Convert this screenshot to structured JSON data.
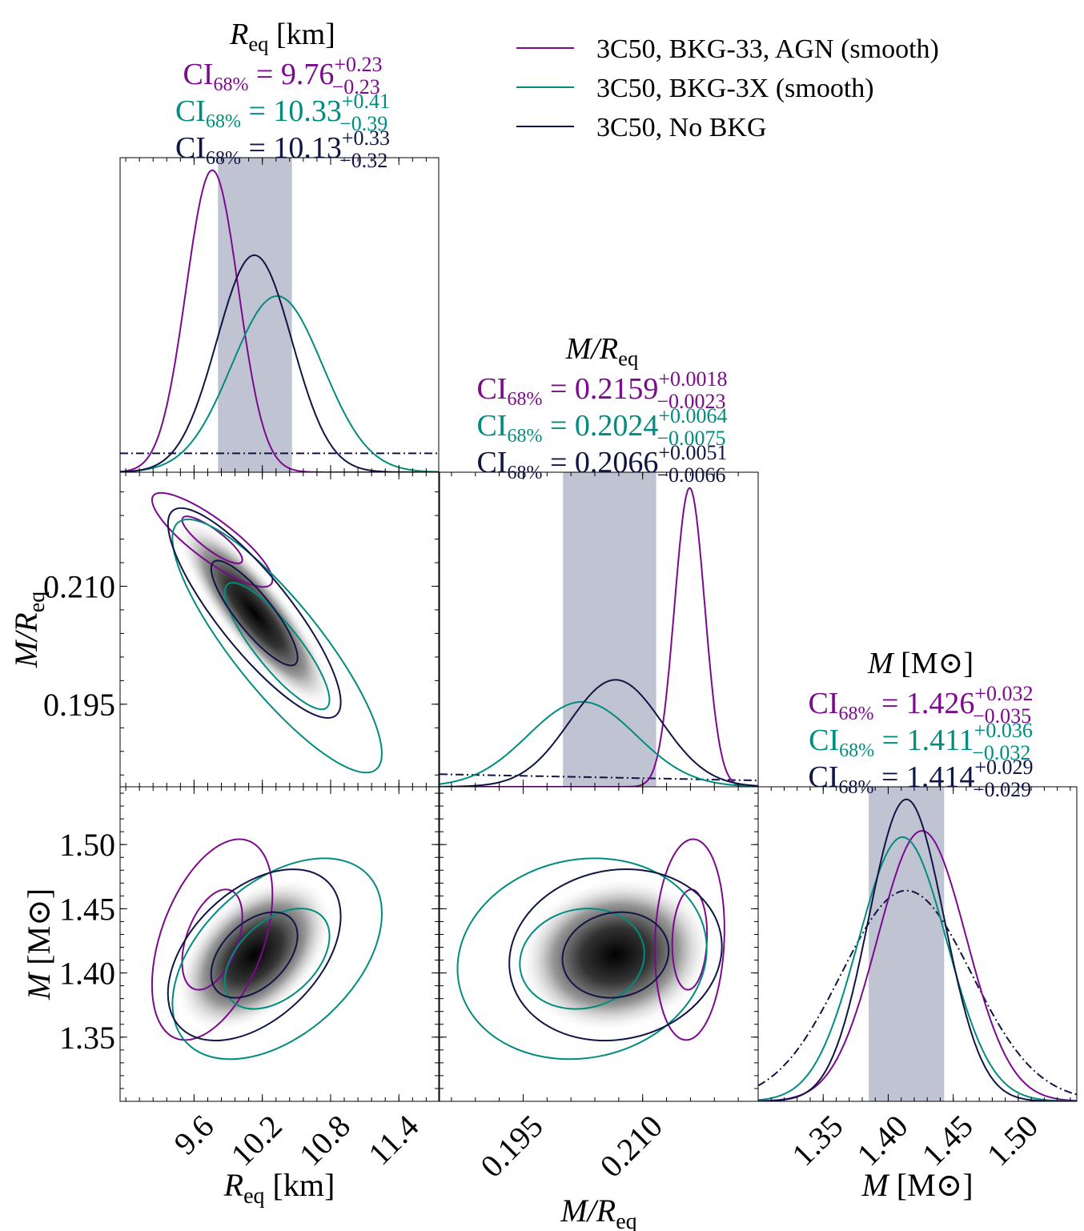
{
  "legend": {
    "entries": [
      {
        "label": "3C50, BKG-33, AGN (smooth)",
        "color": "#7b0a8c"
      },
      {
        "label": "3C50, BKG-3X (smooth)",
        "color": "#008c7e"
      },
      {
        "label": "3C50, No BKG",
        "color": "#101545"
      }
    ]
  },
  "colors": {
    "purple": "#7b0a8c",
    "teal": "#008c7e",
    "navy": "#101545",
    "band": "#c0c3d1"
  },
  "chart_data": {
    "type": "corner",
    "parameters": [
      {
        "key": "R",
        "label_main": "R",
        "label_sub": "eq",
        "label_unit": " [km]",
        "range": [
          8.95,
          11.75
        ],
        "ticks": [
          9.6,
          10.2,
          10.8,
          11.4
        ],
        "tick_labels": [
          "9.6",
          "10.2",
          "10.8",
          "11.4"
        ]
      },
      {
        "key": "C",
        "label_main": "M/R",
        "label_sub": "eq",
        "label_unit": "",
        "range": [
          0.1845,
          0.2245
        ],
        "ticks": [
          0.195,
          0.21
        ],
        "tick_labels": [
          "0.195",
          "0.210"
        ]
      },
      {
        "key": "M",
        "label_main": "M",
        "label_sub": "",
        "label_unit": " [M⊙]",
        "range": [
          1.3,
          1.545
        ],
        "ticks": [
          1.35,
          1.4,
          1.45,
          1.5
        ],
        "tick_labels": [
          "1.35",
          "1.40",
          "1.45",
          "1.50"
        ]
      }
    ],
    "credible_intervals": {
      "prefix": "CI",
      "sub": "68%",
      "R": [
        {
          "series": "3C50, BKG-33, AGN (smooth)",
          "value": "9.76",
          "plus": "+0.23",
          "minus": "−0.23"
        },
        {
          "series": "3C50, BKG-3X (smooth)",
          "value": "10.33",
          "plus": "+0.41",
          "minus": "−0.39"
        },
        {
          "series": "3C50, No BKG",
          "value": "10.13",
          "plus": "+0.33",
          "minus": "−0.32"
        }
      ],
      "C": [
        {
          "series": "3C50, BKG-33, AGN (smooth)",
          "value": "0.2159",
          "plus": "+0.0018",
          "minus": "−0.0023"
        },
        {
          "series": "3C50, BKG-3X (smooth)",
          "value": "0.2024",
          "plus": "+0.0064",
          "minus": "−0.0075"
        },
        {
          "series": "3C50, No BKG",
          "value": "0.2066",
          "plus": "+0.0051",
          "minus": "−0.0066"
        }
      ],
      "M": [
        {
          "series": "3C50, BKG-33, AGN (smooth)",
          "value": "1.426",
          "plus": "+0.032",
          "minus": "−0.035"
        },
        {
          "series": "3C50, BKG-3X (smooth)",
          "value": "1.411",
          "plus": "+0.036",
          "minus": "−0.032"
        },
        {
          "series": "3C50, No BKG",
          "value": "1.414",
          "plus": "+0.029",
          "minus": "−0.029"
        }
      ]
    },
    "shaded_68_band": {
      "R": [
        9.81,
        10.46
      ],
      "C": [
        0.2,
        0.2117
      ],
      "M": [
        1.385,
        1.443
      ]
    },
    "marginals_1d": {
      "R": [
        {
          "series": "purple",
          "mean": 9.76,
          "sigma": 0.23,
          "peak": 0.96
        },
        {
          "series": "teal",
          "mean": 10.33,
          "sigma": 0.4,
          "peak": 0.56
        },
        {
          "series": "navy",
          "mean": 10.13,
          "sigma": 0.33,
          "peak": 0.69
        }
      ],
      "C": [
        {
          "series": "purple",
          "mean": 0.2159,
          "sigma": 0.0019,
          "peak": 0.95
        },
        {
          "series": "teal",
          "mean": 0.2024,
          "sigma": 0.0068,
          "peak": 0.27
        },
        {
          "series": "navy",
          "mean": 0.2066,
          "sigma": 0.0058,
          "peak": 0.34
        }
      ],
      "M": [
        {
          "series": "purple",
          "mean": 1.426,
          "sigma": 0.034,
          "peak": 0.86
        },
        {
          "series": "teal",
          "mean": 1.411,
          "sigma": 0.034,
          "peak": 0.84
        },
        {
          "series": "navy",
          "mean": 1.414,
          "sigma": 0.029,
          "peak": 0.96
        }
      ]
    },
    "priors_dashdot": {
      "R": {
        "type": "flat",
        "level": 0.06
      },
      "C": {
        "type": "linear",
        "left": 0.04,
        "right": 0.02
      },
      "M": {
        "type": "gauss",
        "mean": 1.414,
        "sigma": 0.05,
        "peak": 0.67
      }
    },
    "contours_2d": {
      "C_vs_R": {
        "rho": -0.85,
        "series": [
          {
            "series": "purple",
            "mx": 9.76,
            "my": 0.2159,
            "sx": 0.23,
            "sy": 0.0026
          },
          {
            "series": "teal",
            "mx": 10.33,
            "my": 0.2024,
            "sx": 0.4,
            "sy": 0.007
          },
          {
            "series": "navy",
            "mx": 10.13,
            "my": 0.2066,
            "sx": 0.33,
            "sy": 0.0058
          }
        ],
        "density": {
          "mx": 10.13,
          "my": 0.2066,
          "sx": 0.33,
          "sy": 0.0058
        }
      },
      "M_vs_R": {
        "rho": 0.45,
        "series": [
          {
            "series": "purple",
            "mx": 9.76,
            "my": 1.426,
            "sx": 0.23,
            "sy": 0.034
          },
          {
            "series": "teal",
            "mx": 10.33,
            "my": 1.411,
            "sx": 0.4,
            "sy": 0.034
          },
          {
            "series": "navy",
            "mx": 10.13,
            "my": 1.414,
            "sx": 0.33,
            "sy": 0.029
          }
        ],
        "density": {
          "mx": 10.13,
          "my": 1.414,
          "sx": 0.33,
          "sy": 0.029
        }
      },
      "M_vs_C": {
        "rho": 0.1,
        "series": [
          {
            "series": "purple",
            "mx": 0.2159,
            "my": 1.426,
            "sx": 0.0019,
            "sy": 0.034
          },
          {
            "series": "teal",
            "mx": 0.2024,
            "my": 1.411,
            "sx": 0.0068,
            "sy": 0.034
          },
          {
            "series": "navy",
            "mx": 0.2066,
            "my": 1.414,
            "sx": 0.0058,
            "sy": 0.029
          }
        ],
        "density": {
          "mx": 0.2066,
          "my": 1.414,
          "sx": 0.0058,
          "sy": 0.029
        }
      }
    },
    "contour_levels_sigma": [
      1,
      2
    ],
    "axis_labels": {
      "x": [
        "R",
        "M/R",
        "M"
      ],
      "y": [
        "M/R",
        "M"
      ]
    }
  }
}
